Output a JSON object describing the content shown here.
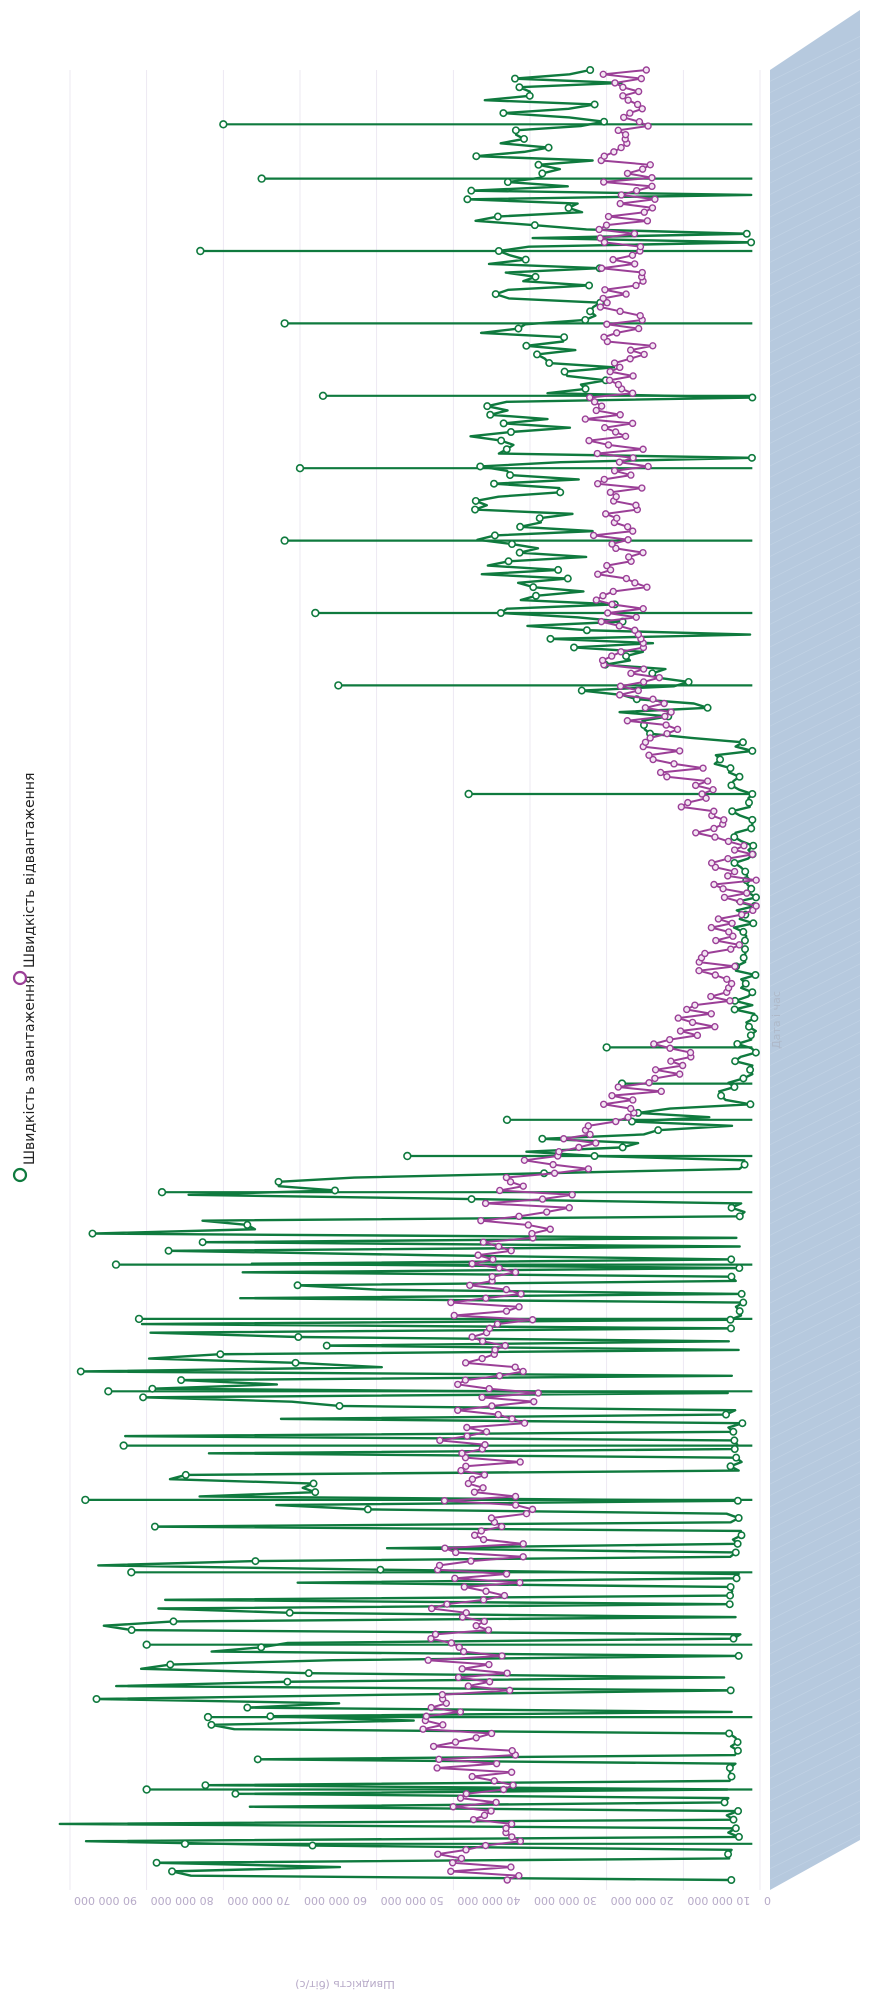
{
  "chart_data": {
    "type": "line",
    "xlabel": "Дата і час",
    "ylabel": "Швидкість (біт/с)",
    "ylim": [
      0,
      90000000
    ],
    "y_ticks": [
      0,
      10000000,
      20000000,
      30000000,
      40000000,
      50000000,
      60000000,
      70000000,
      80000000,
      90000000
    ],
    "y_tick_labels": [
      "0",
      "10 000 000",
      "20 000 000",
      "30 000 000",
      "40 000 000",
      "50 000 000",
      "60 000 000",
      "70 000 000",
      "80 000 000",
      "90 000 000"
    ],
    "grid": true,
    "legend_position": "top-right",
    "series": [
      {
        "name": "Швидкість завантаження",
        "color": "#0f7a3e",
        "marker": "circle",
        "profile": [
          [
            0,
            68000000
          ],
          [
            3,
            73000000
          ],
          [
            6,
            70000000
          ],
          [
            9,
            66000000
          ],
          [
            12,
            74000000
          ],
          [
            15,
            72000000
          ],
          [
            18,
            64000000
          ],
          [
            21,
            70000000
          ],
          [
            24,
            62000000
          ],
          [
            27,
            72000000
          ],
          [
            30,
            68000000
          ],
          [
            33,
            60000000
          ],
          [
            36,
            67000000
          ],
          [
            39,
            45000000
          ],
          [
            40,
            30000000
          ],
          [
            42,
            8000000
          ],
          [
            45,
            2000000
          ],
          [
            48,
            2000000
          ],
          [
            52,
            2000000
          ],
          [
            56,
            2000000
          ],
          [
            60,
            3000000
          ],
          [
            62,
            5000000
          ],
          [
            64,
            10000000
          ],
          [
            66,
            15000000
          ],
          [
            68,
            20000000
          ],
          [
            70,
            25000000
          ],
          [
            72,
            28000000
          ],
          [
            75,
            30000000
          ],
          [
            78,
            28000000
          ],
          [
            80,
            30000000
          ],
          [
            83,
            27000000
          ],
          [
            86,
            30000000
          ],
          [
            89,
            29000000
          ],
          [
            92,
            31000000
          ],
          [
            95,
            30000000
          ],
          [
            98,
            28000000
          ],
          [
            100,
            26000000
          ]
        ],
        "peaks": [
          [
            2,
            75000000
          ],
          [
            5,
            80000000
          ],
          [
            9,
            72000000
          ],
          [
            13,
            80000000
          ],
          [
            17,
            82000000
          ],
          [
            21,
            88000000
          ],
          [
            24,
            83000000
          ],
          [
            27,
            85000000
          ],
          [
            31,
            81000000
          ],
          [
            34,
            84000000
          ],
          [
            38,
            78000000
          ],
          [
            40,
            46000000
          ],
          [
            42,
            33000000
          ],
          [
            44,
            18000000
          ],
          [
            46,
            20000000
          ],
          [
            60,
            38000000
          ],
          [
            66,
            55000000
          ],
          [
            70,
            58000000
          ],
          [
            74,
            62000000
          ],
          [
            78,
            60000000
          ],
          [
            82,
            57000000
          ],
          [
            86,
            62000000
          ],
          [
            90,
            73000000
          ],
          [
            94,
            65000000
          ],
          [
            97,
            70000000
          ]
        ]
      },
      {
        "name": "Швидкість відвантаження",
        "color": "#9b3f97",
        "marker": "circle",
        "profile": [
          [
            0,
            37000000
          ],
          [
            4,
            37000000
          ],
          [
            8,
            38000000
          ],
          [
            12,
            38000000
          ],
          [
            16,
            37000000
          ],
          [
            20,
            35000000
          ],
          [
            24,
            37000000
          ],
          [
            28,
            34000000
          ],
          [
            32,
            35000000
          ],
          [
            35,
            33000000
          ],
          [
            38,
            30000000
          ],
          [
            41,
            23000000
          ],
          [
            44,
            15000000
          ],
          [
            47,
            9000000
          ],
          [
            50,
            5000000
          ],
          [
            54,
            3000000
          ],
          [
            57,
            4000000
          ],
          [
            60,
            8000000
          ],
          [
            63,
            13000000
          ],
          [
            66,
            16000000
          ],
          [
            69,
            19000000
          ],
          [
            72,
            18000000
          ],
          [
            75,
            19000000
          ],
          [
            78,
            18000000
          ],
          [
            81,
            20000000
          ],
          [
            84,
            17000000
          ],
          [
            87,
            18000000
          ],
          [
            90,
            19000000
          ],
          [
            93,
            17000000
          ],
          [
            96,
            18000000
          ],
          [
            100,
            18000000
          ]
        ]
      }
    ]
  }
}
